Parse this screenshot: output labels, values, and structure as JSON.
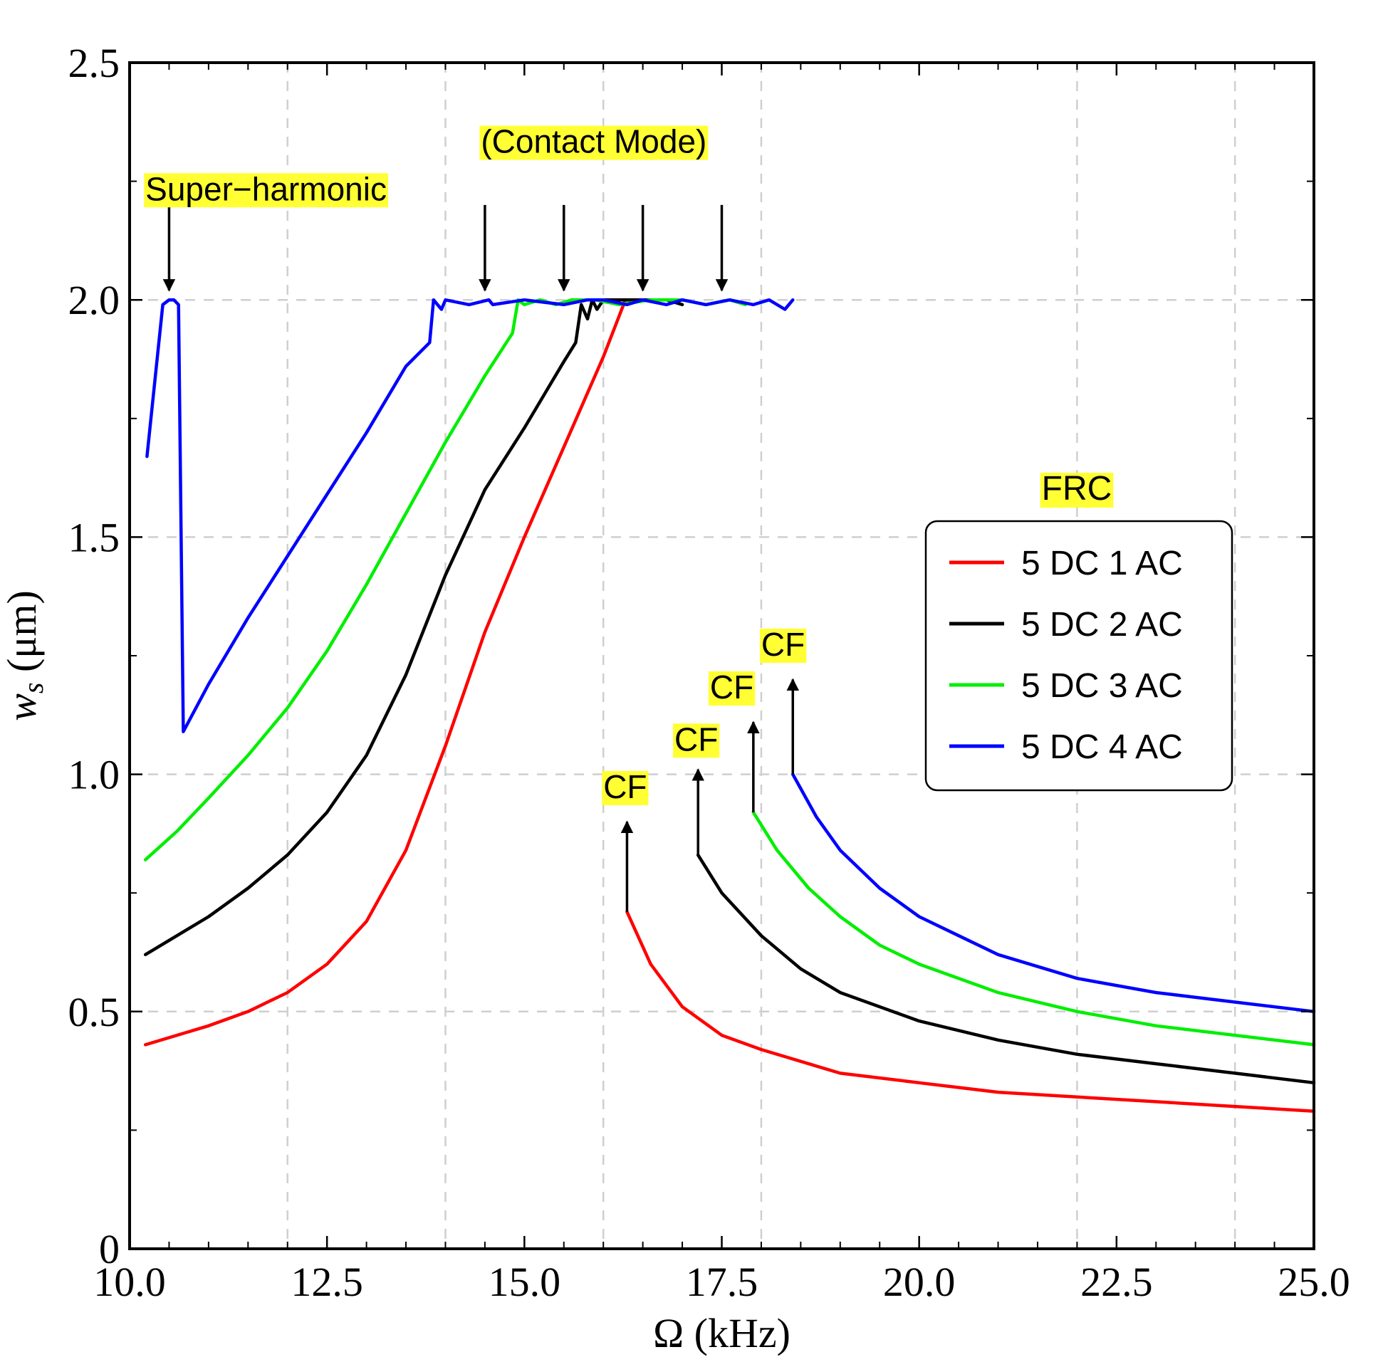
{
  "chart_data": {
    "type": "line",
    "title": "",
    "xlabel": "Ω (kHz)",
    "ylabel_main": "w",
    "ylabel_sub": "s",
    "ylabel_unit": " (μm)",
    "xlim": [
      10.0,
      25.0
    ],
    "ylim": [
      0,
      2.5
    ],
    "x_ticks": [
      10.0,
      12.5,
      15.0,
      17.5,
      20.0,
      22.5,
      25.0
    ],
    "x_tick_labels": [
      "10.0",
      "12.5",
      "15.0",
      "17.5",
      "20.0",
      "22.5",
      "25.0"
    ],
    "x_minor_ticks": [
      10.5,
      11.0,
      11.5,
      12.0,
      13.0,
      13.5,
      14.0,
      14.5,
      15.5,
      16.0,
      16.5,
      17.0,
      18.0,
      18.5,
      19.0,
      19.5,
      20.5,
      21.0,
      21.5,
      22.0,
      23.0,
      23.5,
      24.0,
      24.5
    ],
    "y_ticks": [
      0,
      0.5,
      1.0,
      1.5,
      2.0,
      2.5
    ],
    "y_tick_labels": [
      "0",
      "0.5",
      "1.0",
      "1.5",
      "2.0",
      "2.5"
    ],
    "y_minor_ticks": [
      0.25,
      0.75,
      1.25,
      1.75,
      2.25
    ],
    "x_grid": [
      12.0,
      14.0,
      16.0,
      18.0,
      22.0,
      24.0
    ],
    "y_grid": [
      0.5,
      1.0,
      1.5,
      2.0
    ],
    "legend": {
      "title": "FRC",
      "placement": "right",
      "entries": [
        "5 DC 1 AC",
        "5 DC 2 AC",
        "5 DC 3 AC",
        "5 DC 4 AC"
      ]
    },
    "series": [
      {
        "name": "5 DC 1 AC",
        "color": "#ff0000",
        "branches": [
          {
            "x": [
              10.2,
              10.6,
              11.0,
              11.5,
              12.0,
              12.5,
              13.0,
              13.5,
              14.0,
              14.5,
              15.0,
              15.5,
              16.0,
              16.28
            ],
            "y": [
              0.43,
              0.45,
              0.47,
              0.5,
              0.54,
              0.6,
              0.69,
              0.84,
              1.06,
              1.3,
              1.5,
              1.69,
              1.88,
              2.0
            ]
          },
          {
            "x": [
              16.3,
              16.6,
              17.0,
              17.5,
              18.0,
              19.0,
              20.0,
              21.0,
              22.0,
              23.0,
              24.0,
              25.0
            ],
            "y": [
              0.71,
              0.6,
              0.51,
              0.45,
              0.42,
              0.37,
              0.35,
              0.33,
              0.32,
              0.31,
              0.3,
              0.29
            ]
          }
        ]
      },
      {
        "name": "5 DC 2 AC",
        "color": "#000000",
        "branches": [
          {
            "x": [
              10.2,
              10.6,
              11.0,
              11.5,
              12.0,
              12.5,
              13.0,
              13.5,
              14.0,
              14.5,
              15.0,
              15.5,
              15.65,
              15.72,
              15.8,
              15.86,
              15.92,
              16.0,
              16.2,
              16.5,
              16.8,
              17.0
            ],
            "y": [
              0.62,
              0.66,
              0.7,
              0.76,
              0.83,
              0.92,
              1.04,
              1.21,
              1.42,
              1.6,
              1.73,
              1.87,
              1.91,
              1.99,
              1.96,
              2.0,
              1.98,
              2.0,
              2.0,
              2.0,
              2.0,
              1.99
            ]
          },
          {
            "x": [
              17.2,
              17.5,
              18.0,
              18.5,
              19.0,
              20.0,
              21.0,
              22.0,
              23.0,
              24.0,
              25.0
            ],
            "y": [
              0.83,
              0.75,
              0.66,
              0.59,
              0.54,
              0.48,
              0.44,
              0.41,
              0.39,
              0.37,
              0.35
            ]
          }
        ]
      },
      {
        "name": "5 DC 3 AC",
        "color": "#00ee00",
        "branches": [
          {
            "x": [
              10.2,
              10.6,
              11.0,
              11.5,
              12.0,
              12.5,
              13.0,
              13.5,
              14.0,
              14.5,
              14.85,
              14.92,
              15.0,
              15.2,
              15.4,
              15.6,
              15.9,
              16.2,
              16.6,
              17.0,
              17.3,
              17.6,
              17.8
            ],
            "y": [
              0.82,
              0.88,
              0.95,
              1.04,
              1.14,
              1.26,
              1.4,
              1.55,
              1.7,
              1.84,
              1.93,
              2.0,
              1.99,
              2.0,
              1.99,
              2.0,
              2.0,
              1.99,
              2.0,
              2.0,
              1.99,
              2.0,
              1.99
            ]
          },
          {
            "x": [
              17.9,
              18.2,
              18.6,
              19.0,
              19.5,
              20.0,
              21.0,
              22.0,
              23.0,
              24.0,
              25.0
            ],
            "y": [
              0.92,
              0.84,
              0.76,
              0.7,
              0.64,
              0.6,
              0.54,
              0.5,
              0.47,
              0.45,
              0.43
            ]
          }
        ]
      },
      {
        "name": "5 DC 4 AC",
        "color": "#0000ff",
        "branches": [
          {
            "x": [
              10.22,
              10.42,
              10.5,
              10.56,
              10.62,
              10.68,
              11.0,
              11.5,
              12.0,
              12.5,
              13.0,
              13.5,
              13.8,
              13.85,
              13.95,
              14.0,
              14.3,
              14.55,
              14.6,
              15.0,
              15.5,
              15.8,
              16.0,
              16.3,
              16.5,
              16.8,
              17.0,
              17.3,
              17.6,
              17.9,
              18.1,
              18.3,
              18.4
            ],
            "y": [
              1.67,
              1.99,
              2.0,
              2.0,
              1.99,
              1.09,
              1.19,
              1.33,
              1.46,
              1.59,
              1.72,
              1.86,
              1.91,
              2.0,
              1.98,
              2.0,
              1.99,
              2.0,
              1.99,
              2.0,
              1.99,
              2.0,
              2.0,
              1.99,
              2.0,
              1.99,
              2.0,
              1.99,
              2.0,
              1.99,
              2.0,
              1.98,
              2.0
            ]
          },
          {
            "x": [
              18.4,
              18.7,
              19.0,
              19.5,
              20.0,
              20.5,
              21.0,
              22.0,
              23.0,
              24.0,
              25.0
            ],
            "y": [
              1.0,
              0.91,
              0.84,
              0.76,
              0.7,
              0.66,
              0.62,
              0.57,
              0.54,
              0.52,
              0.5
            ]
          }
        ]
      }
    ],
    "annotations": [
      {
        "text": "Super−harmonic",
        "x": 10.2,
        "y": 2.21
      },
      {
        "text": "(Contact Mode)",
        "x": 14.45,
        "y": 2.31
      },
      {
        "text": "CF",
        "x": 16.0,
        "y": 0.95
      },
      {
        "text": "CF",
        "x": 16.9,
        "y": 1.05
      },
      {
        "text": "CF",
        "x": 17.35,
        "y": 1.16
      },
      {
        "text": "CF",
        "x": 18.0,
        "y": 1.25
      }
    ],
    "arrows_down": [
      {
        "x": 10.5,
        "y_from": 2.2,
        "y_to": 2.02
      },
      {
        "x": 14.5,
        "y_from": 2.2,
        "y_to": 2.02
      },
      {
        "x": 15.5,
        "y_from": 2.2,
        "y_to": 2.02
      },
      {
        "x": 16.5,
        "y_from": 2.2,
        "y_to": 2.02
      },
      {
        "x": 17.5,
        "y_from": 2.2,
        "y_to": 2.02
      }
    ],
    "arrows_up": [
      {
        "x": 16.3,
        "y_from": 0.71,
        "y_to": 0.9
      },
      {
        "x": 17.2,
        "y_from": 0.83,
        "y_to": 1.01
      },
      {
        "x": 17.9,
        "y_from": 0.92,
        "y_to": 1.11
      },
      {
        "x": 18.4,
        "y_from": 1.0,
        "y_to": 1.2
      }
    ]
  }
}
